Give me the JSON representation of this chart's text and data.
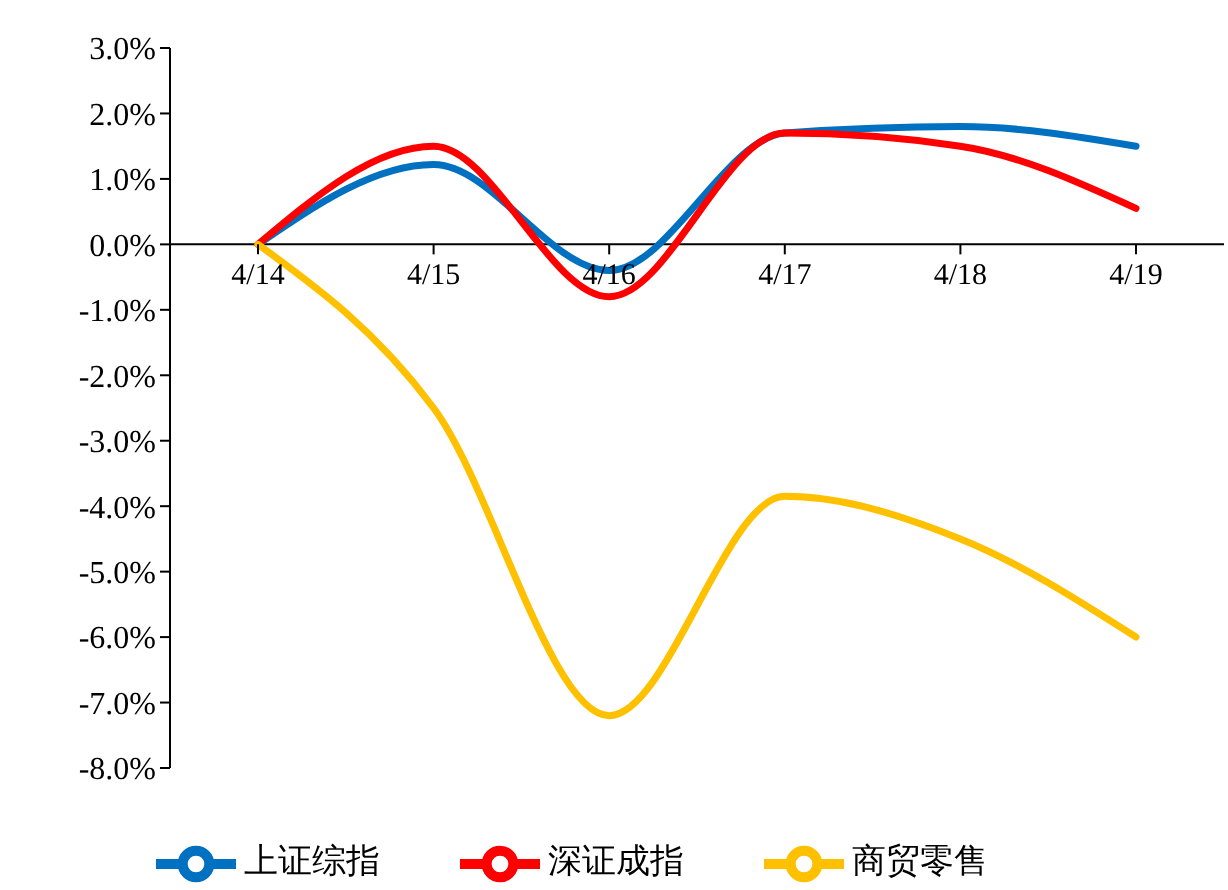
{
  "chart_data": {
    "type": "line",
    "categories": [
      "4/14",
      "4/15",
      "4/16",
      "4/17",
      "4/18",
      "4/19"
    ],
    "series": [
      {
        "name": "上证综指",
        "color": "#0070c0",
        "values": [
          0,
          1.22,
          -0.4,
          1.7,
          1.8,
          1.5
        ]
      },
      {
        "name": "深证成指",
        "color": "#ff0000",
        "values": [
          0,
          1.5,
          -0.8,
          1.7,
          1.5,
          0.55
        ]
      },
      {
        "name": "商贸零售",
        "color": "#ffc000",
        "values": [
          0,
          -2.5,
          -7.2,
          -3.85,
          -4.5,
          -6.0
        ]
      }
    ],
    "ylim": [
      -8,
      3
    ],
    "yticks": [
      {
        "value": 3,
        "label": "3.0%"
      },
      {
        "value": 2,
        "label": "2.0%"
      },
      {
        "value": 1,
        "label": "1.0%"
      },
      {
        "value": 0,
        "label": "0.0%"
      },
      {
        "value": -1,
        "label": "-1.0%"
      },
      {
        "value": -2,
        "label": "-2.0%"
      },
      {
        "value": -3,
        "label": "-3.0%"
      },
      {
        "value": -4,
        "label": "-4.0%"
      },
      {
        "value": -5,
        "label": "-5.0%"
      },
      {
        "value": -6,
        "label": "-6.0%"
      },
      {
        "value": -7,
        "label": "-7.0%"
      },
      {
        "value": -8,
        "label": "-8.0%"
      }
    ],
    "grid": false,
    "legend": "bottom",
    "marker": "none",
    "line_style": "solid"
  }
}
